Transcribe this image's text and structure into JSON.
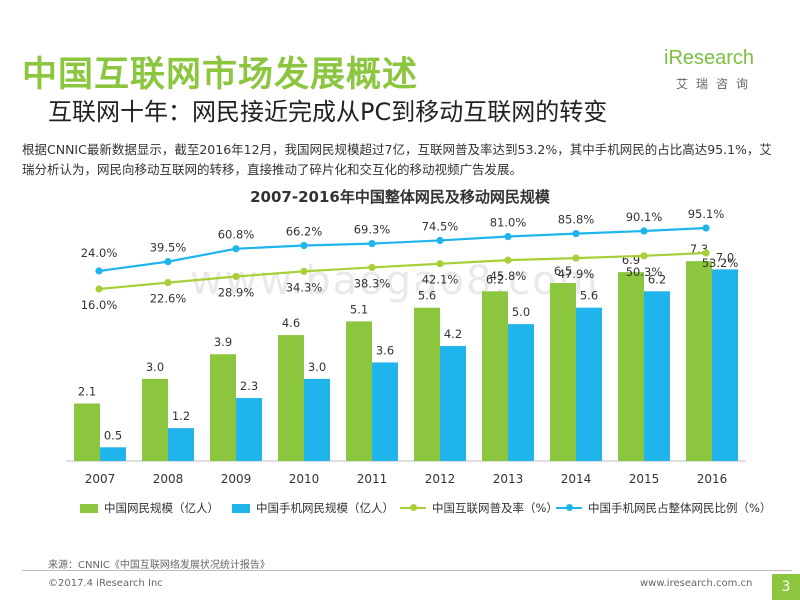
{
  "header": {
    "title": "中国互联网市场发展概述",
    "subtitle": "互联网十年：网民接近完成从PC到移动互联网的转变"
  },
  "logo": {
    "brand_prefix": "i",
    "brand_rest": "Research",
    "cn": "艾瑞咨询"
  },
  "body_text": "根据CNNIC最新数据显示，截至2016年12月，我国网民规模超过7亿，互联网普及率达到53.2%，其中手机网民的占比高达95.1%，艾瑞分析认为，网民向移动互联网的转移，直接推动了碎片化和交互化的移动视频广告发展。",
  "watermark": "www.baogao8.com",
  "chart_data": {
    "type": "bar",
    "title": "2007-2016年中国整体网民及移动网民规模",
    "categories": [
      "2007",
      "2008",
      "2009",
      "2010",
      "2011",
      "2012",
      "2013",
      "2014",
      "2015",
      "2016"
    ],
    "series": [
      {
        "name": "中国网民规模（亿人）",
        "kind": "bar",
        "color": "#8cc63f",
        "values": [
          2.1,
          3.0,
          3.9,
          4.6,
          5.1,
          5.6,
          6.2,
          6.5,
          6.9,
          7.3
        ],
        "labels": [
          "2.1",
          "3.0",
          "3.9",
          "4.6",
          "5.1",
          "5.6",
          "6.2",
          "6.5",
          "6.9",
          "7.3"
        ]
      },
      {
        "name": "中国手机网民规模（亿人）",
        "kind": "bar",
        "color": "#1fb5ec",
        "values": [
          0.5,
          1.2,
          2.3,
          3.0,
          3.6,
          4.2,
          5.0,
          5.6,
          6.2,
          7.0
        ],
        "labels": [
          "0.5",
          "1.2",
          "2.3",
          "3.0",
          "3.6",
          "4.2",
          "5.0",
          "5.6",
          "6.2",
          "7.0"
        ]
      },
      {
        "name": "中国互联网普及率（%）",
        "kind": "line",
        "color": "#a9cf38",
        "values": [
          16.0,
          22.6,
          28.9,
          34.3,
          38.3,
          42.1,
          45.8,
          47.9,
          50.3,
          53.2
        ],
        "labels": [
          "16.0%",
          "22.6%",
          "28.9%",
          "34.3%",
          "38.3%",
          "42.1%",
          "45.8%",
          "47.9%",
          "50.3%",
          "53.2%"
        ]
      },
      {
        "name": "中国手机网民占整体网民比例（%）",
        "kind": "line",
        "color": "#1fb5ec",
        "values": [
          24.0,
          39.5,
          60.8,
          66.2,
          69.3,
          74.5,
          81.0,
          85.8,
          90.1,
          95.1
        ],
        "labels": [
          "24.0%",
          "39.5%",
          "60.8%",
          "66.2%",
          "69.3%",
          "74.5%",
          "81.0%",
          "85.8%",
          "90.1%",
          "95.1%"
        ]
      }
    ],
    "ylim_bars": [
      0,
      8
    ],
    "ylim_pct": [
      0,
      100
    ],
    "legend": "bottom",
    "grid": false
  },
  "footer": {
    "source": "来源：CNNIC《中国互联网络发展状况统计报告》",
    "copyright": "©2017.4 iResearch Inc",
    "website": "www.iresearch.com.cn",
    "page": "3"
  }
}
